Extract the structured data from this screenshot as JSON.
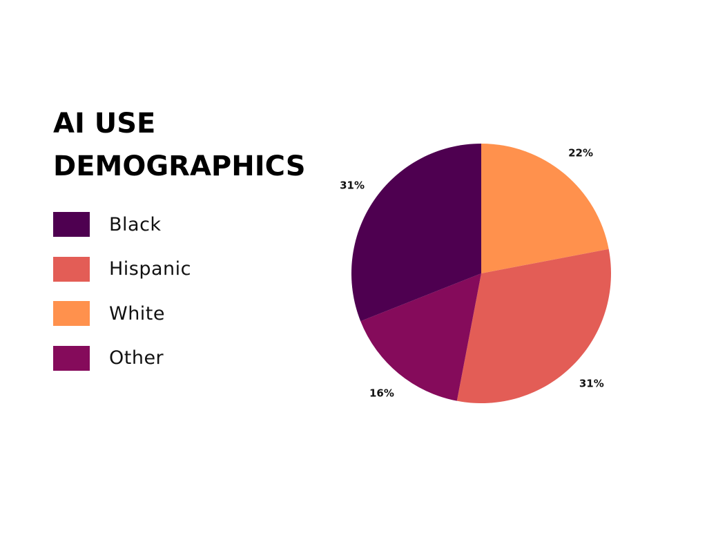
{
  "title_lines": [
    "AI USE",
    "DEMOGRAPHICS"
  ],
  "legend": [
    {
      "label": "Black",
      "color": "#4E0050"
    },
    {
      "label": "Hispanic",
      "color": "#E35D56"
    },
    {
      "label": "White",
      "color": "#FF914D"
    },
    {
      "label": "Other",
      "color": "#850B5B"
    }
  ],
  "chart_data": {
    "type": "pie",
    "title": "AI USE DEMOGRAPHICS",
    "legend_position": "left",
    "slices": [
      {
        "name": "White",
        "value": 22,
        "label": "22%",
        "color": "#FF914D"
      },
      {
        "name": "Hispanic",
        "value": 31,
        "label": "31%",
        "color": "#E35D56"
      },
      {
        "name": "Other",
        "value": 16,
        "label": "16%",
        "color": "#850B5B"
      },
      {
        "name": "Black",
        "value": 31,
        "label": "31%",
        "color": "#4E0050"
      }
    ]
  }
}
